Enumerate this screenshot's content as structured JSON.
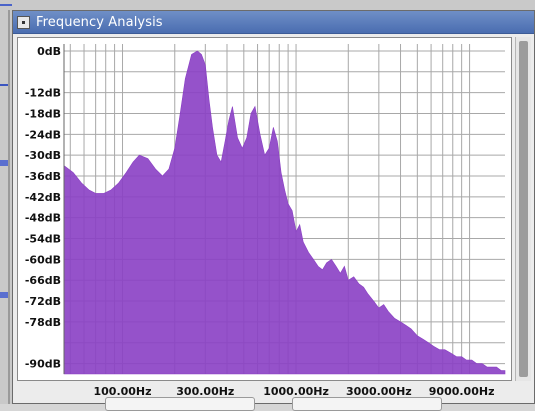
{
  "window": {
    "title": "Frequency Analysis"
  },
  "chart_data": {
    "type": "area",
    "xscale": "log",
    "yunit": "dB",
    "y_tick_labels": [
      "0dB",
      "-12dB",
      "-18dB",
      "-24dB",
      "-30dB",
      "-36dB",
      "-42dB",
      "-48dB",
      "-54dB",
      "-60dB",
      "-66dB",
      "-72dB",
      "-78dB",
      "-90dB"
    ],
    "y_tick_values": [
      0,
      -12,
      -18,
      -24,
      -30,
      -36,
      -42,
      -48,
      -54,
      -60,
      -66,
      -72,
      -78,
      -90
    ],
    "x_tick_labels": [
      "100.00Hz",
      "300.00Hz",
      "1000.00Hz",
      "3000.00Hz",
      "9000.00Hz"
    ],
    "x_tick_values": [
      100,
      300,
      1000,
      3000,
      9000
    ],
    "ylim": [
      -93,
      2
    ],
    "xlim": [
      46,
      16000
    ],
    "fill_color": "#8a3fc4",
    "grid_color": "#a8a8a8",
    "spectrum": {
      "freq_hz": [
        46,
        52,
        58,
        64,
        70,
        78,
        86,
        95,
        105,
        115,
        125,
        140,
        155,
        170,
        185,
        200,
        215,
        230,
        250,
        270,
        285,
        300,
        315,
        330,
        350,
        370,
        390,
        410,
        430,
        460,
        490,
        520,
        550,
        580,
        620,
        660,
        700,
        740,
        780,
        820,
        860,
        900,
        950,
        1000,
        1050,
        1100,
        1180,
        1260,
        1340,
        1420,
        1500,
        1600,
        1700,
        1800,
        1900,
        2000,
        2150,
        2300,
        2450,
        2600,
        2800,
        3000,
        3200,
        3400,
        3700,
        4000,
        4300,
        4600,
        5000,
        5400,
        5800,
        6200,
        6700,
        7200,
        7800,
        8400,
        9000,
        9600,
        10300,
        11000,
        11800,
        12600,
        13400,
        14300,
        15200,
        16000
      ],
      "db": [
        -33,
        -35,
        -38,
        -40,
        -41,
        -41,
        -40,
        -38,
        -35,
        -32,
        -30,
        -31,
        -34,
        -36,
        -34,
        -28,
        -18,
        -8,
        -1,
        0,
        -1,
        -4,
        -14,
        -22,
        -30,
        -32,
        -26,
        -20,
        -16,
        -25,
        -28,
        -25,
        -18,
        -16,
        -24,
        -30,
        -28,
        -22,
        -26,
        -35,
        -40,
        -44,
        -46,
        -52,
        -50,
        -55,
        -58,
        -60,
        -62,
        -63,
        -61,
        -60,
        -62,
        -64,
        -62,
        -66,
        -65,
        -67,
        -68,
        -70,
        -72,
        -74,
        -73,
        -75,
        -77,
        -78,
        -79,
        -80,
        -82,
        -83,
        -84,
        -85,
        -86,
        -86,
        -87,
        -88,
        -88,
        -89,
        -89,
        -90,
        -90,
        -91,
        -91,
        -91,
        -92,
        -92
      ]
    }
  }
}
